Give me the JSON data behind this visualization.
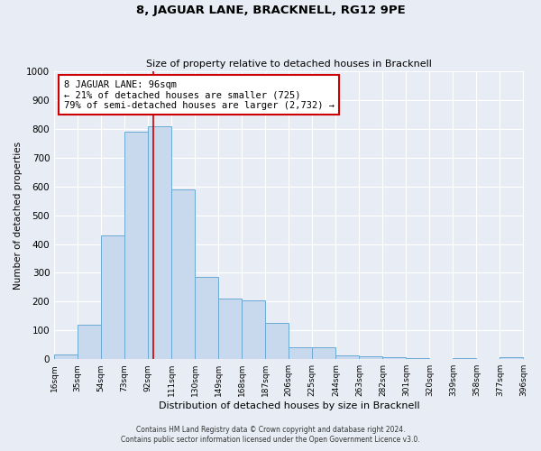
{
  "title": "8, JAGUAR LANE, BRACKNELL, RG12 9PE",
  "subtitle": "Size of property relative to detached houses in Bracknell",
  "xlabel": "Distribution of detached houses by size in Bracknell",
  "ylabel": "Number of detached properties",
  "bar_color": "#c8d9ee",
  "bar_edge_color": "#6aaad4",
  "background_color": "#e8edf5",
  "grid_color": "#ffffff",
  "bins": [
    16,
    35,
    54,
    73,
    92,
    111,
    130,
    149,
    168,
    187,
    206,
    225,
    244,
    263,
    282,
    301,
    320,
    339,
    358,
    377,
    396
  ],
  "bin_labels": [
    "16sqm",
    "35sqm",
    "54sqm",
    "73sqm",
    "92sqm",
    "111sqm",
    "130sqm",
    "149sqm",
    "168sqm",
    "187sqm",
    "206sqm",
    "225sqm",
    "244sqm",
    "263sqm",
    "282sqm",
    "301sqm",
    "320sqm",
    "339sqm",
    "358sqm",
    "377sqm",
    "396sqm"
  ],
  "values": [
    15,
    120,
    430,
    790,
    810,
    590,
    285,
    210,
    205,
    125,
    40,
    40,
    12,
    10,
    7,
    5,
    0,
    5,
    0,
    7
  ],
  "ylim": [
    0,
    1000
  ],
  "yticks": [
    0,
    100,
    200,
    300,
    400,
    500,
    600,
    700,
    800,
    900,
    1000
  ],
  "vline_x": 96,
  "vline_color": "#cc0000",
  "annotation_title": "8 JAGUAR LANE: 96sqm",
  "annotation_line1": "← 21% of detached houses are smaller (725)",
  "annotation_line2": "79% of semi-detached houses are larger (2,732) →",
  "annotation_box_color": "#ffffff",
  "annotation_box_edge": "#cc0000",
  "footer1": "Contains HM Land Registry data © Crown copyright and database right 2024.",
  "footer2": "Contains public sector information licensed under the Open Government Licence v3.0."
}
